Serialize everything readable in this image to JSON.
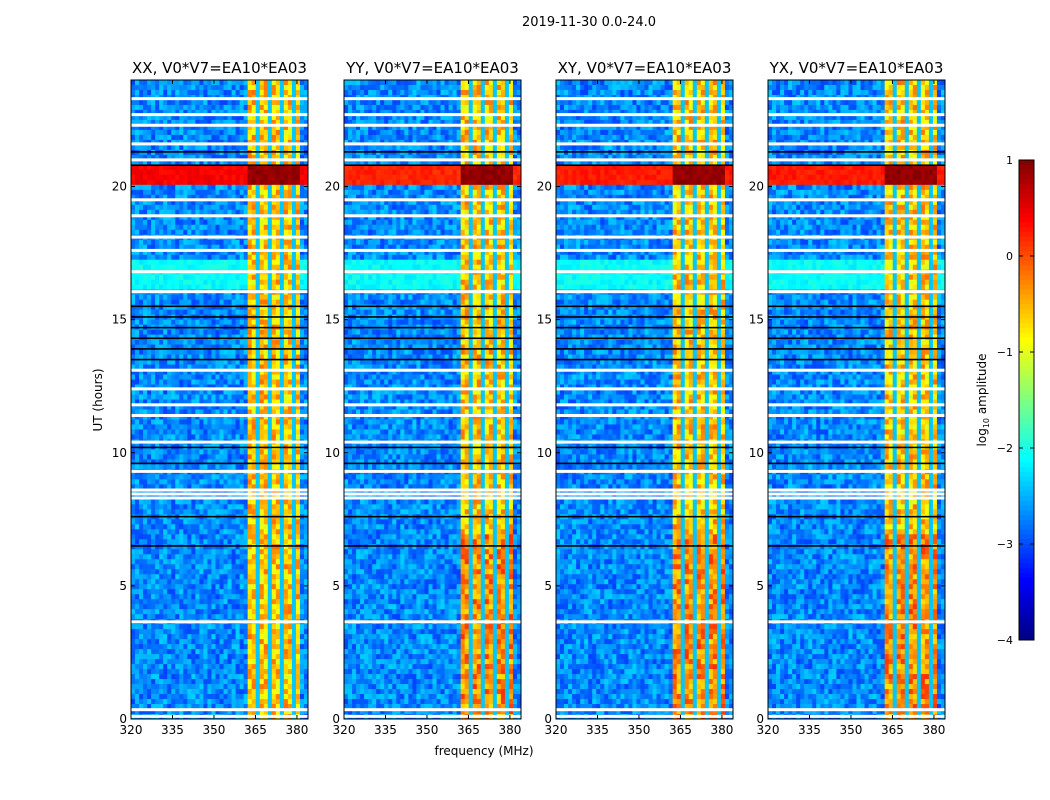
{
  "chart_data": {
    "type": "heatmap",
    "suptitle": "2019-11-30 0.0-24.0",
    "xlabel": "frequency (MHz)",
    "ylabel": "UT (hours)",
    "xlim": [
      320,
      384
    ],
    "ylim": [
      0,
      24
    ],
    "xticks": [
      "320",
      "335",
      "350",
      "365",
      "380"
    ],
    "xtick_values": [
      320,
      335,
      350,
      365,
      380
    ],
    "yticks": [
      "0",
      "5",
      "10",
      "15",
      "20"
    ],
    "ytick_values": [
      0,
      5,
      10,
      15,
      20
    ],
    "panels": [
      {
        "title": "XX, V0*V7=EA10*EA03",
        "rfi_strength": 1.0
      },
      {
        "title": "YY, V0*V7=EA10*EA03",
        "rfi_strength": 0.6
      },
      {
        "title": "XY, V0*V7=EA10*EA03",
        "rfi_strength": 0.7
      },
      {
        "title": "YX, V0*V7=EA10*EA03",
        "rfi_strength": 0.7
      }
    ],
    "colorbar": {
      "label": "log10 amplitude",
      "label_main": "log",
      "label_sub": "10",
      "label_rest": " amplitude",
      "range": [
        -4,
        1
      ],
      "ticks": [
        "1",
        "0",
        "−1",
        "−2",
        "−3",
        "−4"
      ],
      "tick_values": [
        1,
        0,
        -1,
        -2,
        -3,
        -4
      ],
      "colormap": "jet"
    },
    "background_level": -2.7,
    "bright_band_mhz": [
      362,
      381.5
    ],
    "bright_band_level": -0.6,
    "band_gaps_mhz": [
      366,
      370,
      374.5,
      378.5
    ],
    "flagged_hours": [
      0.1,
      0.35,
      3.65,
      8.3,
      8.45,
      8.6,
      9.3,
      10.4,
      11.4,
      11.8,
      12.4,
      13.1,
      16.05,
      16.8,
      17.6,
      18.1,
      18.9,
      19.5,
      21.0,
      21.6,
      22.3,
      22.7,
      23.3
    ],
    "black_hours": [
      6.5,
      7.6,
      9.6,
      10.2,
      13.5,
      13.9,
      14.3,
      14.7,
      15.1,
      15.5,
      21.3,
      20.8
    ],
    "rfi_hours": [
      20.0,
      20.8
    ]
  }
}
